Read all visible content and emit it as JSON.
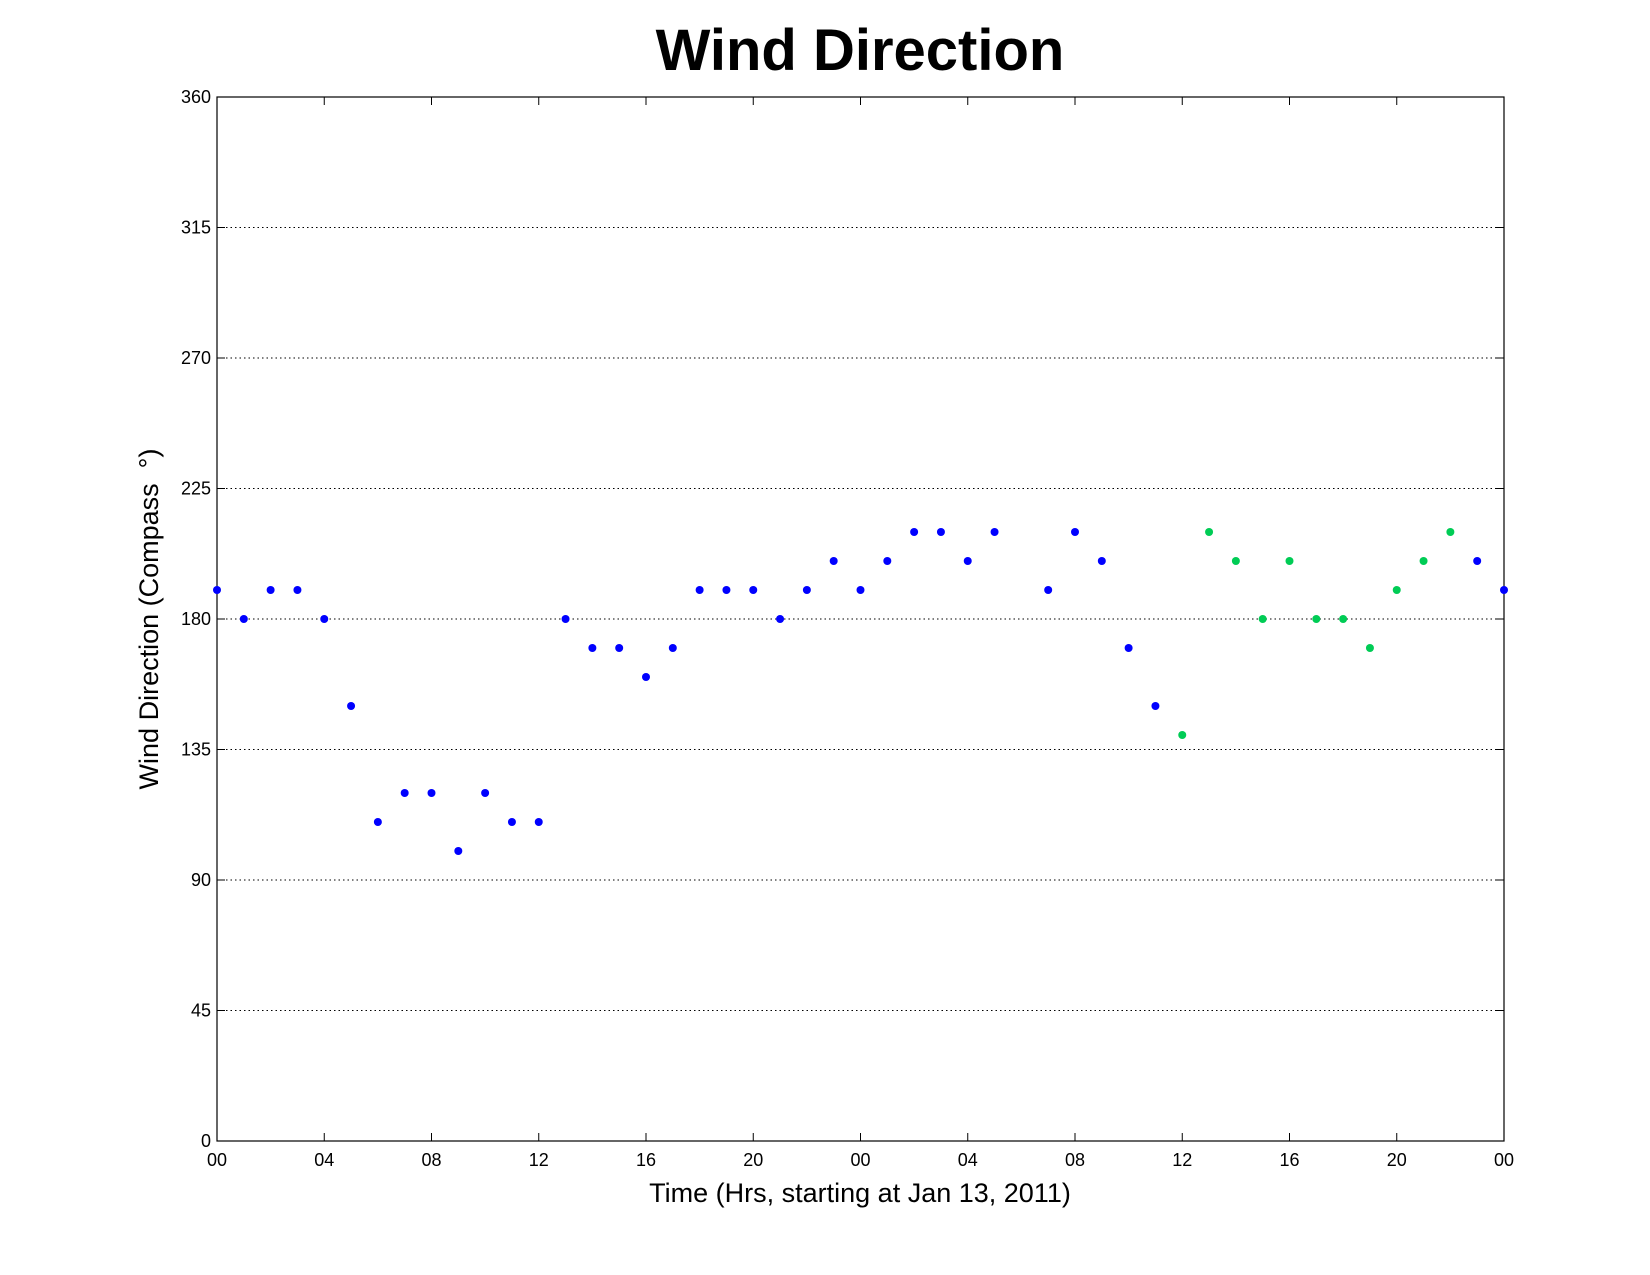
{
  "chart_data": {
    "type": "scatter",
    "title": "Wind Direction",
    "xlabel": "Time (Hrs, starting at Jan 13, 2011)",
    "ylabel": "Wind Direction (Compass  °)",
    "x_unit": "hours",
    "xlim": [
      0,
      48
    ],
    "ylim": [
      0,
      360
    ],
    "x_ticks": [
      0,
      4,
      8,
      12,
      16,
      20,
      24,
      28,
      32,
      36,
      40,
      44,
      48
    ],
    "x_tick_labels": [
      "00",
      "04",
      "08",
      "12",
      "16",
      "20",
      "00",
      "04",
      "08",
      "12",
      "16",
      "20",
      "00"
    ],
    "y_ticks": [
      0,
      45,
      90,
      135,
      180,
      225,
      270,
      315,
      360
    ],
    "grid": "horizontal dotted",
    "series": [
      {
        "color": "#0000ff",
        "points": [
          [
            0,
            190
          ],
          [
            1,
            180
          ],
          [
            2,
            190
          ],
          [
            3,
            190
          ],
          [
            4,
            180
          ],
          [
            5,
            150
          ],
          [
            6,
            110
          ],
          [
            7,
            120
          ],
          [
            8,
            120
          ],
          [
            9,
            100
          ],
          [
            10,
            120
          ],
          [
            11,
            110
          ],
          [
            12,
            110
          ],
          [
            13,
            180
          ],
          [
            14,
            170
          ],
          [
            15,
            170
          ],
          [
            16,
            160
          ],
          [
            17,
            170
          ],
          [
            18,
            190
          ],
          [
            19,
            190
          ],
          [
            20,
            190
          ],
          [
            21,
            180
          ],
          [
            22,
            190
          ],
          [
            23,
            200
          ],
          [
            24,
            190
          ],
          [
            25,
            200
          ],
          [
            26,
            210
          ],
          [
            27,
            210
          ],
          [
            28,
            200
          ],
          [
            29,
            210
          ],
          [
            31,
            190
          ],
          [
            32,
            210
          ],
          [
            33,
            200
          ],
          [
            34,
            170
          ],
          [
            35,
            150
          ],
          [
            47,
            200
          ],
          [
            48,
            190
          ]
        ]
      },
      {
        "color": "#00cc55",
        "points": [
          [
            36,
            140
          ],
          [
            37,
            210
          ],
          [
            38,
            200
          ],
          [
            39,
            180
          ],
          [
            40,
            200
          ],
          [
            41,
            180
          ],
          [
            42,
            180
          ],
          [
            43,
            170
          ],
          [
            44,
            190
          ],
          [
            45,
            200
          ],
          [
            46,
            210
          ]
        ]
      }
    ]
  }
}
